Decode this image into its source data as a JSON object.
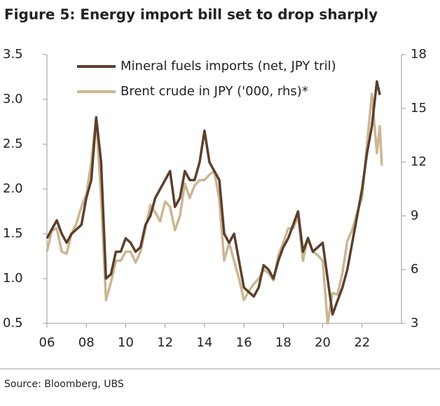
{
  "chart_data": {
    "type": "line",
    "title": "Figure 5: Energy import bill set to drop sharply",
    "source": "Source: Bloomberg, UBS",
    "x": [
      2006,
      2006.25,
      2006.5,
      2006.75,
      2007,
      2007.25,
      2007.5,
      2007.75,
      2008,
      2008.25,
      2008.5,
      2008.75,
      2009,
      2009.25,
      2009.5,
      2009.75,
      2010,
      2010.25,
      2010.5,
      2010.75,
      2011,
      2011.25,
      2011.5,
      2011.75,
      2012,
      2012.25,
      2012.5,
      2012.75,
      2013,
      2013.25,
      2013.5,
      2013.75,
      2014,
      2014.25,
      2014.5,
      2014.75,
      2015,
      2015.25,
      2015.5,
      2015.75,
      2016,
      2016.25,
      2016.5,
      2016.75,
      2017,
      2017.25,
      2017.5,
      2017.75,
      2018,
      2018.25,
      2018.5,
      2018.75,
      2019,
      2019.25,
      2019.5,
      2019.75,
      2020,
      2020.25,
      2020.5,
      2020.75,
      2021,
      2021.25,
      2021.5,
      2021.75,
      2022,
      2022.25,
      2022.5,
      2022.75,
      2022.9,
      2023
    ],
    "series": [
      {
        "name": "Mineral fuels imports (net, JPY tril)",
        "color": "#5b3f2c",
        "axis": "y",
        "values": [
          1.45,
          1.55,
          1.65,
          1.5,
          1.4,
          1.5,
          1.55,
          1.6,
          1.9,
          2.1,
          2.8,
          2.3,
          1.0,
          1.05,
          1.3,
          1.3,
          1.45,
          1.4,
          1.3,
          1.35,
          1.6,
          1.7,
          1.9,
          2.0,
          2.1,
          2.2,
          1.8,
          1.9,
          2.2,
          2.1,
          2.1,
          2.3,
          2.65,
          2.3,
          2.2,
          2.1,
          1.5,
          1.4,
          1.5,
          1.2,
          0.9,
          0.85,
          0.8,
          0.9,
          1.15,
          1.1,
          1.0,
          1.2,
          1.35,
          1.45,
          1.6,
          1.75,
          1.3,
          1.45,
          1.3,
          1.35,
          1.4,
          1.0,
          0.6,
          0.75,
          0.9,
          1.1,
          1.4,
          1.7,
          2.0,
          2.4,
          2.7,
          3.2,
          3.05,
          null
        ]
      },
      {
        "name": "Brent crude in JPY ('000, rhs)*",
        "color": "#cbb692",
        "axis": "y2",
        "values": [
          7,
          8.2,
          8.3,
          7.0,
          6.9,
          8.0,
          8.6,
          9.5,
          10.2,
          12.0,
          14.5,
          10.0,
          4.3,
          5.3,
          6.5,
          6.5,
          7.0,
          7.0,
          6.4,
          7.0,
          8.3,
          9.6,
          9.2,
          8.7,
          9.8,
          9.5,
          8.2,
          9.0,
          10.8,
          10.0,
          10.7,
          11.0,
          11.0,
          11.3,
          11.5,
          9.9,
          6.5,
          7.5,
          6.5,
          5.5,
          4.3,
          4.8,
          5.2,
          5.5,
          6.0,
          5.8,
          5.4,
          6.8,
          7.5,
          8.3,
          8.3,
          9.0,
          6.5,
          7.8,
          7.0,
          6.8,
          6.5,
          3.0,
          4.7,
          4.6,
          5.8,
          7.6,
          8.2,
          9.2,
          10.0,
          13.0,
          15.8,
          12.5,
          14.0,
          11.8
        ]
      }
    ],
    "xlim": [
      2006,
      2024
    ],
    "xticks": [
      {
        "value": 2006,
        "label": "06"
      },
      {
        "value": 2008,
        "label": "08"
      },
      {
        "value": 2010,
        "label": "10"
      },
      {
        "value": 2012,
        "label": "12"
      },
      {
        "value": 2014,
        "label": "14"
      },
      {
        "value": 2016,
        "label": "16"
      },
      {
        "value": 2018,
        "label": "18"
      },
      {
        "value": 2020,
        "label": "20"
      },
      {
        "value": 2022,
        "label": "22"
      }
    ],
    "ylim": [
      0.5,
      3.5
    ],
    "yticks": [
      0.5,
      {
        "value": 1,
        "label": "1.0"
      },
      1.5,
      {
        "value": 2,
        "label": "2.0"
      },
      2.5,
      {
        "value": 3,
        "label": "3.0"
      },
      3.5
    ],
    "y2lim": [
      3,
      18
    ],
    "y2ticks": [
      3,
      6,
      9,
      12,
      15,
      18
    ],
    "grid": false
  }
}
